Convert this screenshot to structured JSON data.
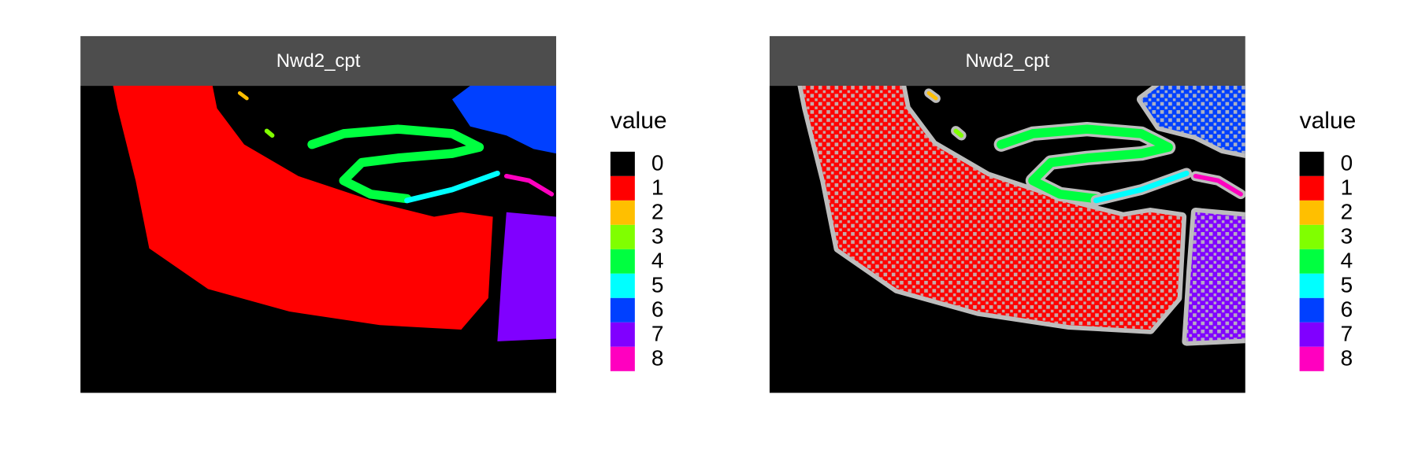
{
  "chart_data": [
    {
      "type": "raster",
      "title": "Nwd2_cpt",
      "legend_title": "value",
      "categories": [
        "0",
        "1",
        "2",
        "3",
        "4",
        "5",
        "6",
        "7",
        "8"
      ],
      "colors": [
        "#000000",
        "#ff0000",
        "#ffbf00",
        "#80ff00",
        "#00ff40",
        "#00ffff",
        "#0040ff",
        "#8000ff",
        "#ff00bf"
      ]
    },
    {
      "type": "raster",
      "title": "Nwd2_cpt",
      "legend_title": "value",
      "overlay": true,
      "overlay_color": "#bdbdbd",
      "categories": [
        "0",
        "1",
        "2",
        "3",
        "4",
        "5",
        "6",
        "7",
        "8"
      ],
      "colors": [
        "#000000",
        "#ff0000",
        "#ffbf00",
        "#80ff00",
        "#00ff40",
        "#00ffff",
        "#0040ff",
        "#8000ff",
        "#ff00bf"
      ]
    }
  ]
}
